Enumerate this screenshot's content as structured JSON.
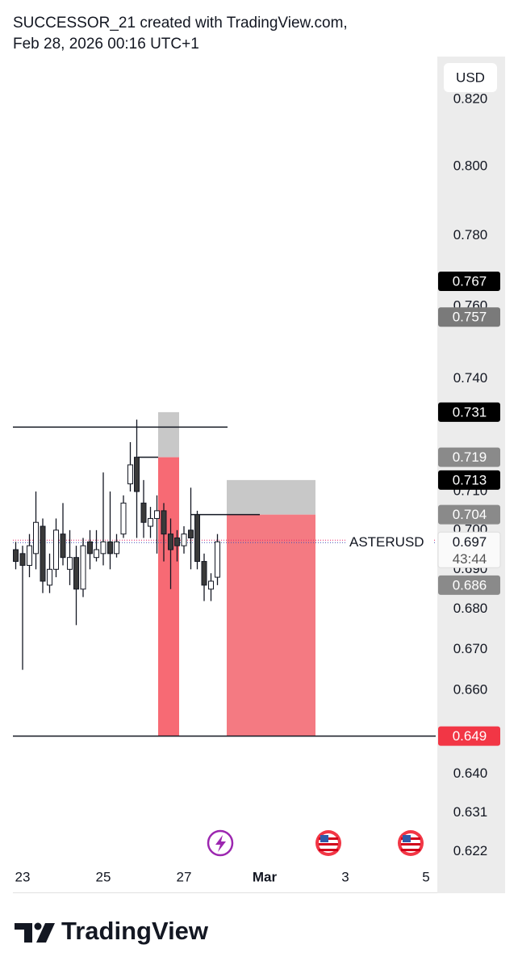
{
  "chart_data": {
    "type": "candlestick",
    "title": "SUCCESSOR_21 created with TradingView.com,",
    "subtitle": "Feb 28, 2026 00:16 UTC+1",
    "symbol": "ASTERUSD",
    "currency": "USD",
    "countdown": "43:44",
    "brand": "TradingView",
    "log_scale": true,
    "grid": false,
    "up_color": "#ffffff",
    "down_color": "#3a3a3a",
    "x": [
      22.83,
      23.0,
      23.17,
      23.33,
      23.5,
      23.67,
      23.83,
      24.0,
      24.17,
      24.33,
      24.5,
      24.67,
      24.83,
      25.0,
      25.17,
      25.33,
      25.5,
      25.67,
      25.83,
      26.0,
      26.17,
      26.33,
      26.5,
      26.67,
      26.83,
      27.0,
      27.17,
      27.33,
      27.5,
      27.67,
      27.83
    ],
    "open": [
      0.695,
      0.694,
      0.691,
      0.694,
      0.701,
      0.686,
      0.69,
      0.699,
      0.69,
      0.693,
      0.685,
      0.697,
      0.693,
      0.694,
      0.697,
      0.694,
      0.699,
      0.712,
      0.719,
      0.707,
      0.701,
      0.703,
      0.705,
      0.699,
      0.698,
      0.696,
      0.7,
      0.704,
      0.692,
      0.685,
      0.688
    ],
    "high": [
      0.697,
      0.696,
      0.699,
      0.71,
      0.703,
      0.694,
      0.703,
      0.707,
      0.7,
      0.696,
      0.698,
      0.7,
      0.7,
      0.715,
      0.71,
      0.699,
      0.709,
      0.723,
      0.729,
      0.713,
      0.706,
      0.709,
      0.707,
      0.703,
      0.7,
      0.701,
      0.711,
      0.705,
      0.694,
      0.689,
      0.699
    ],
    "low": [
      0.69,
      0.665,
      0.688,
      0.69,
      0.684,
      0.684,
      0.688,
      0.691,
      0.686,
      0.676,
      0.683,
      0.69,
      0.692,
      0.691,
      0.69,
      0.693,
      0.698,
      0.71,
      0.698,
      0.698,
      0.698,
      0.694,
      0.692,
      0.685,
      0.692,
      0.694,
      0.69,
      0.69,
      0.682,
      0.682,
      0.686
    ],
    "close": [
      0.692,
      0.691,
      0.696,
      0.702,
      0.687,
      0.69,
      0.7,
      0.693,
      0.693,
      0.685,
      0.696,
      0.694,
      0.695,
      0.697,
      0.694,
      0.697,
      0.707,
      0.717,
      0.71,
      0.702,
      0.703,
      0.705,
      0.699,
      0.695,
      0.696,
      0.699,
      0.698,
      0.692,
      0.686,
      0.687,
      0.697
    ],
    "xlim": [
      22.76,
      33.24
    ],
    "xticks": [
      23,
      25,
      27,
      {
        "value": 29,
        "label": "Mar"
      },
      {
        "value": 31,
        "label": "3"
      },
      {
        "value": 33,
        "label": "5"
      }
    ],
    "ylim": [
      0.619,
      0.833
    ],
    "yticks": [
      {
        "value": 0.82,
        "label": "0.820"
      },
      {
        "value": 0.8,
        "label": "0.800"
      },
      {
        "value": 0.78,
        "label": "0.780"
      },
      {
        "value": 0.76,
        "label": "0.760"
      },
      {
        "value": 0.74,
        "label": "0.740"
      },
      {
        "value": 0.71,
        "label": "0.710"
      },
      {
        "value": 0.7,
        "label": "0.700"
      },
      {
        "value": 0.69,
        "label": "0.690"
      },
      {
        "value": 0.68,
        "label": "0.680"
      },
      {
        "value": 0.67,
        "label": "0.670"
      },
      {
        "value": 0.66,
        "label": "0.660"
      },
      {
        "value": 0.64,
        "label": "0.640"
      },
      {
        "value": 0.631,
        "label": "0.631"
      },
      {
        "value": 0.622,
        "label": "0.622"
      }
    ],
    "price_labels": [
      {
        "value": 0.767,
        "label": "0.767",
        "color": "#000000"
      },
      {
        "value": 0.757,
        "label": "0.757",
        "color": "#7a7a7a"
      },
      {
        "value": 0.731,
        "label": "0.731",
        "color": "#000000"
      },
      {
        "value": 0.719,
        "label": "0.719",
        "color": "#8a8a8a"
      },
      {
        "value": 0.713,
        "label": "0.713",
        "color": "#000000"
      },
      {
        "value": 0.704,
        "label": "0.704",
        "color": "#8a8a8a"
      },
      {
        "value": 0.686,
        "label": "0.686",
        "color": "#8a8a8a"
      },
      {
        "value": 0.649,
        "label": "0.649",
        "color": "#f23645"
      }
    ],
    "last_price": {
      "value": 0.697,
      "label": "0.697"
    },
    "levels": [
      {
        "value": 0.727,
        "x": [
          22.76,
          28.08
        ]
      },
      {
        "value": 0.649,
        "x": [
          22.76,
          33.24
        ]
      },
      {
        "value": 0.719,
        "x": [
          25.86,
          26.36
        ]
      },
      {
        "value": 0.704,
        "x": [
          27.18,
          28.88
        ]
      }
    ],
    "positions": [
      {
        "entry": 0.719,
        "stop": 0.731,
        "target": 0.649,
        "x": [
          26.36,
          26.88
        ]
      },
      {
        "entry": 0.704,
        "stop": 0.713,
        "target": 0.649,
        "x": [
          28.06,
          30.26
        ]
      }
    ]
  }
}
